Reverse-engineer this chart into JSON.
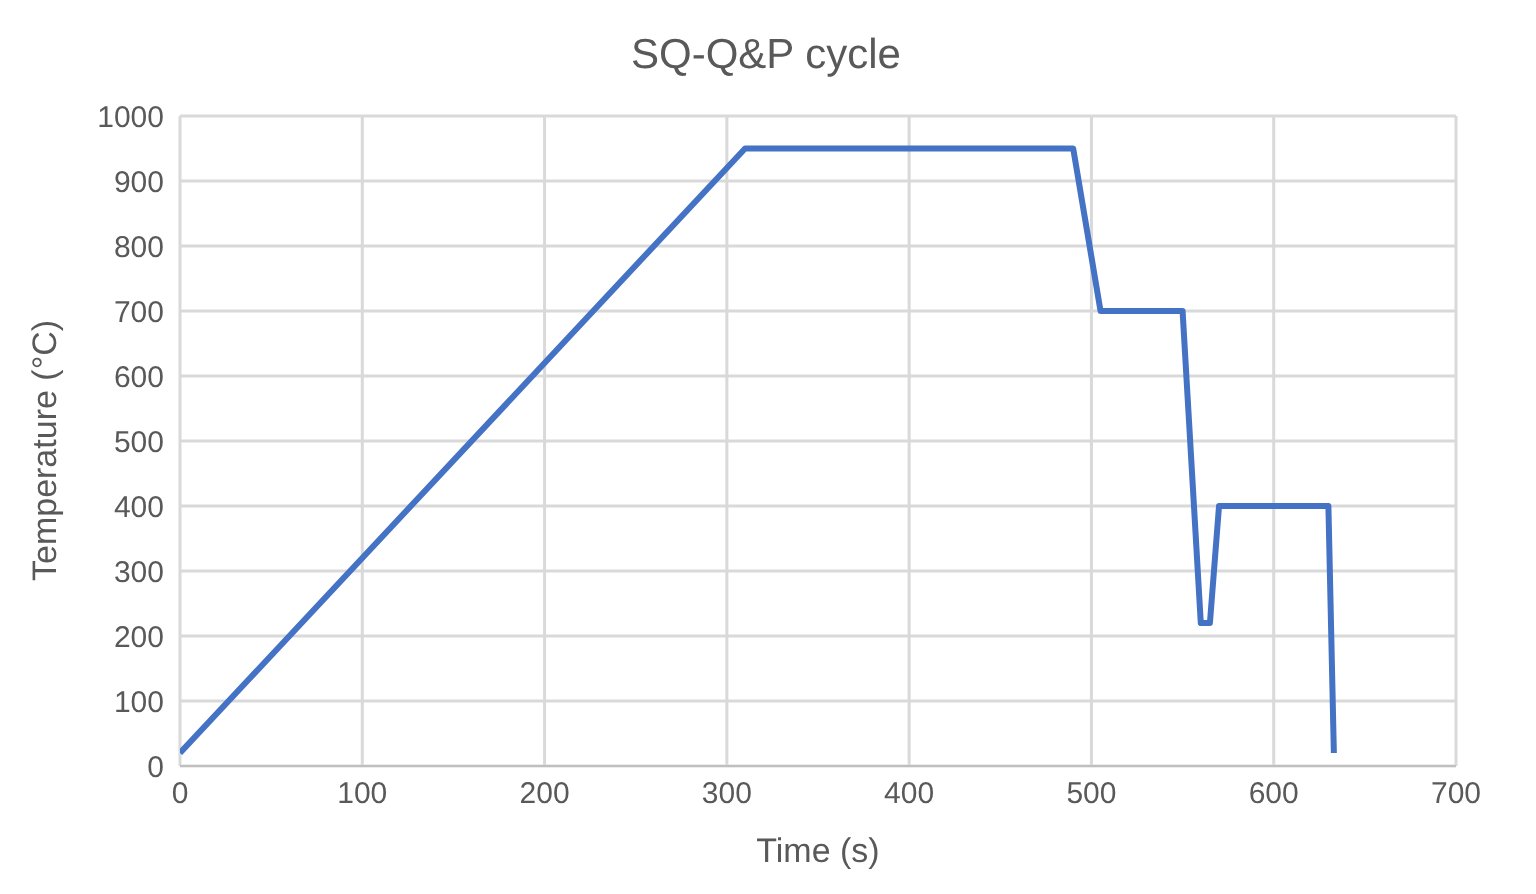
{
  "chart_data": {
    "type": "line",
    "title": "SQ-Q&P cycle",
    "xlabel": "Time (s)",
    "ylabel": "Temperature (°C)",
    "x": [
      0,
      310,
      490,
      505,
      550,
      560,
      565,
      570,
      630,
      633
    ],
    "series": [
      {
        "color": "#4472c4",
        "values": [
          20,
          950,
          950,
          700,
          700,
          220,
          220,
          400,
          400,
          20
        ]
      }
    ],
    "xlim": [
      0,
      700
    ],
    "xticks": [
      0,
      100,
      200,
      300,
      400,
      500,
      600,
      700
    ],
    "ylim": [
      0,
      1000
    ],
    "yticks": [
      0,
      100,
      200,
      300,
      400,
      500,
      600,
      700,
      800,
      900,
      1000
    ],
    "grid": true,
    "legend": false,
    "marker": "none",
    "line_style": "solid"
  }
}
